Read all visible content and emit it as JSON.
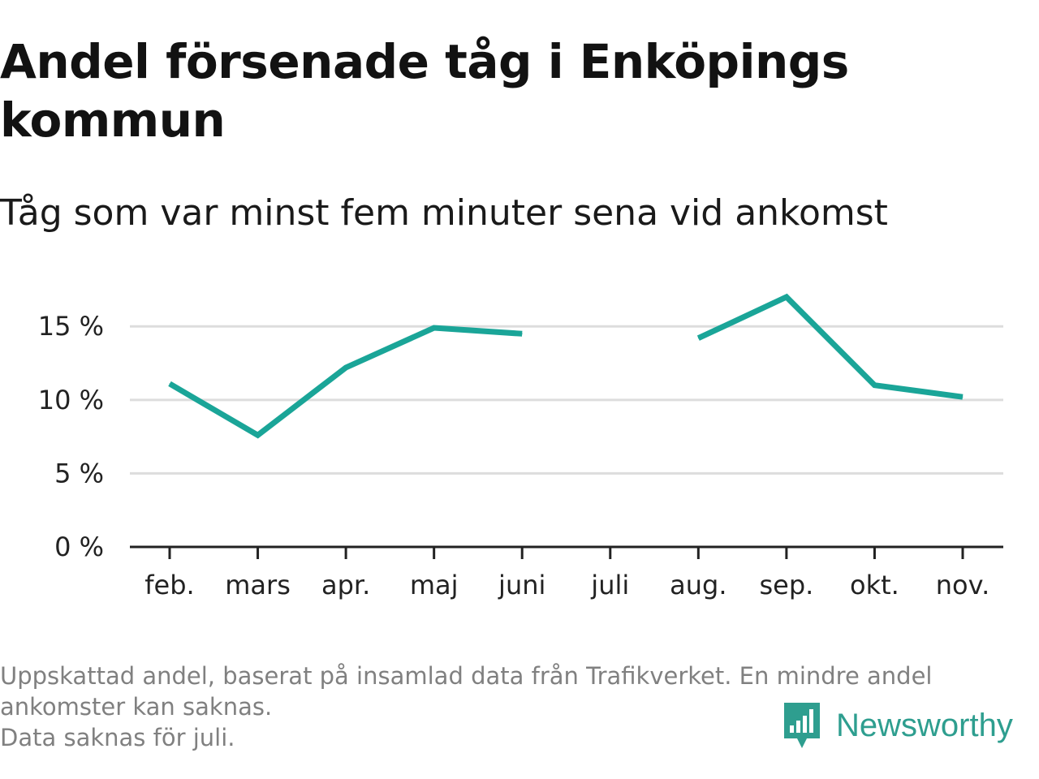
{
  "title": "Andel försenade tåg i Enköpings kommun",
  "subtitle": "Tåg som var minst fem minuter sena vid ankomst",
  "footnote": {
    "line1": "Uppskattad andel, baserat på insamlad data från Trafikverket. En mindre andel",
    "line2": "ankomster kan saknas.",
    "line3": "Data saknas för juli."
  },
  "brand": {
    "name": "Newsworthy",
    "icon": "newsworthy-logo-icon",
    "color": "#2e9e8f"
  },
  "chart_data": {
    "type": "line",
    "title": "Andel försenade tåg i Enköpings kommun",
    "subtitle": "Tåg som var minst fem minuter sena vid ankomst",
    "xlabel": "",
    "ylabel": "",
    "categories": [
      "feb.",
      "mars",
      "apr.",
      "maj",
      "juni",
      "juli",
      "aug.",
      "sep.",
      "okt.",
      "nov."
    ],
    "series": [
      {
        "values": [
          11.1,
          7.6,
          12.2,
          14.9,
          14.5,
          null,
          14.2,
          17.0,
          11.0,
          10.2
        ],
        "color": "#1aa598"
      }
    ],
    "ylim": [
      0,
      17
    ],
    "yticks": [
      0,
      5,
      10,
      15
    ],
    "ytick_labels": [
      "0 %",
      "5 %",
      "10 %",
      "15 %"
    ],
    "grid": true,
    "legend": "none"
  }
}
